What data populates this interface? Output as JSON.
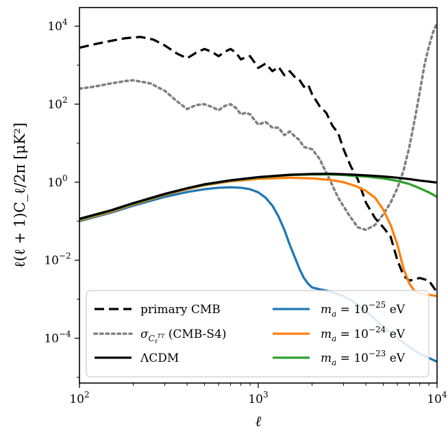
{
  "chart_data": {
    "type": "line",
    "xlabel": "ℓ",
    "ylabel": "ℓ(ℓ + 1)C_ℓ/2π [μK²]",
    "xscale": "log",
    "yscale": "log",
    "xlim": [
      100,
      10000
    ],
    "ylim": [
      7.1e-06,
      30000
    ],
    "grid": false,
    "legend_placement": "lower-left",
    "x_ticks": [
      {
        "value": 100,
        "base": "10",
        "exp": "2"
      },
      {
        "value": 1000,
        "base": "10",
        "exp": "3"
      },
      {
        "value": 10000,
        "base": "10",
        "exp": "4"
      }
    ],
    "y_ticks": [
      {
        "value": 0.0001,
        "base": "10",
        "exp": "−4"
      },
      {
        "value": 0.01,
        "base": "10",
        "exp": "−2"
      },
      {
        "value": 1,
        "base": "10",
        "exp": "0"
      },
      {
        "value": 100,
        "base": "10",
        "exp": "2"
      },
      {
        "value": 10000,
        "base": "10",
        "exp": "4"
      }
    ],
    "series": [
      {
        "name": "primary CMB",
        "color": "#000000",
        "style": "dashed",
        "x": [
          100,
          120,
          150,
          180,
          220,
          260,
          300,
          350,
          400,
          450,
          500,
          550,
          600,
          650,
          700,
          750,
          800,
          850,
          900,
          950,
          1000,
          1100,
          1200,
          1300,
          1400,
          1500,
          1600,
          1700,
          1800,
          1900,
          2000,
          2200,
          2400,
          2600,
          2800,
          3000,
          3300,
          3600,
          4000,
          4500,
          5000,
          5500,
          6000,
          6500,
          7000,
          8000,
          9000,
          10000
        ],
        "y": [
          2800,
          3400,
          4200,
          4900,
          5300,
          4500,
          3200,
          2000,
          1500,
          2100,
          2600,
          2200,
          1700,
          2200,
          2600,
          2100,
          1400,
          1600,
          1700,
          1200,
          850,
          1100,
          700,
          900,
          550,
          700,
          500,
          420,
          280,
          320,
          180,
          90,
          60,
          28,
          18,
          7,
          2.5,
          1.2,
          0.3,
          0.12,
          0.07,
          0.04,
          0.01,
          0.004,
          0.003,
          0.0035,
          0.003,
          0.0015
        ]
      },
      {
        "name": "σ_{C_ℓ^{TT}} (CMB-S4)",
        "color": "#808080",
        "style": "dotted",
        "x": [
          100,
          120,
          150,
          180,
          200,
          250,
          300,
          350,
          400,
          450,
          500,
          550,
          600,
          650,
          700,
          750,
          800,
          850,
          900,
          950,
          1000,
          1100,
          1200,
          1300,
          1400,
          1500,
          1600,
          1700,
          1800,
          2000,
          2200,
          2500,
          2800,
          3200,
          3600,
          4000,
          4500,
          5000,
          5500,
          6000,
          6500,
          7000,
          7500,
          8000,
          8500,
          9000,
          9500,
          10000
        ],
        "y": [
          250,
          280,
          340,
          390,
          410,
          340,
          220,
          120,
          75,
          95,
          100,
          85,
          70,
          90,
          100,
          80,
          55,
          60,
          55,
          40,
          30,
          35,
          25,
          25,
          16,
          20,
          15,
          12,
          8,
          7,
          4,
          1.2,
          0.4,
          0.15,
          0.07,
          0.06,
          0.08,
          0.15,
          0.3,
          0.7,
          2,
          8,
          40,
          200,
          1000,
          3000,
          7000,
          12000
        ]
      },
      {
        "name": "ΛCDM",
        "color": "#000000",
        "style": "solid",
        "x": [
          100,
          150,
          200,
          300,
          400,
          500,
          700,
          1000,
          1500,
          2000,
          2500,
          3000,
          4000,
          5000,
          6000,
          7000,
          8000,
          10000
        ],
        "y": [
          0.115,
          0.19,
          0.29,
          0.5,
          0.7,
          0.88,
          1.12,
          1.35,
          1.55,
          1.62,
          1.64,
          1.6,
          1.5,
          1.4,
          1.3,
          1.2,
          1.1,
          0.98
        ]
      },
      {
        "name": "m_a = 10^{−25} eV",
        "color": "#1f77b4",
        "style": "solid",
        "x": [
          100,
          150,
          200,
          300,
          400,
          500,
          600,
          700,
          800,
          900,
          1000,
          1100,
          1200,
          1300,
          1400,
          1500,
          1600,
          1700,
          1800,
          1900,
          2000,
          2200,
          2500,
          3000,
          3500,
          4000,
          5000,
          6000,
          7000,
          8000,
          10000
        ],
        "y": [
          0.1,
          0.165,
          0.25,
          0.42,
          0.56,
          0.66,
          0.72,
          0.74,
          0.72,
          0.66,
          0.55,
          0.4,
          0.25,
          0.13,
          0.06,
          0.025,
          0.012,
          0.006,
          0.0035,
          0.0025,
          0.002,
          0.0018,
          0.0016,
          0.0012,
          0.0008,
          0.0005,
          0.0002,
          0.0001,
          6e-05,
          4e-05,
          2.5e-05
        ]
      },
      {
        "name": "m_a = 10^{−24} eV",
        "color": "#ff7f0e",
        "style": "solid",
        "x": [
          100,
          150,
          200,
          300,
          400,
          500,
          700,
          1000,
          1500,
          2000,
          2500,
          3000,
          3500,
          4000,
          4500,
          5000,
          5500,
          6000,
          6500,
          7000,
          7500,
          8000,
          9000,
          10000
        ],
        "y": [
          0.105,
          0.175,
          0.27,
          0.47,
          0.66,
          0.83,
          1.05,
          1.22,
          1.3,
          1.25,
          1.15,
          1.0,
          0.8,
          0.6,
          0.4,
          0.2,
          0.08,
          0.025,
          0.006,
          0.0025,
          0.0016,
          0.0014,
          0.0013,
          0.0012
        ]
      },
      {
        "name": "m_a = 10^{−23} eV",
        "color": "#2ca02c",
        "style": "solid",
        "x": [
          100,
          150,
          200,
          300,
          400,
          500,
          700,
          1000,
          1500,
          2000,
          2500,
          3000,
          4000,
          5000,
          6000,
          7000,
          8000,
          9000,
          10000
        ],
        "y": [
          0.11,
          0.185,
          0.28,
          0.49,
          0.69,
          0.86,
          1.1,
          1.32,
          1.52,
          1.58,
          1.58,
          1.52,
          1.4,
          1.25,
          1.08,
          0.9,
          0.7,
          0.55,
          0.42
        ]
      }
    ],
    "legend": [
      {
        "series": 0,
        "label": "primary CMB"
      },
      {
        "series": 1,
        "label_pre": "σ",
        "label_sub": "C",
        "label_subsub": "ℓ",
        "label_supsub": "TT",
        "label_post": " (CMB-S4)"
      },
      {
        "series": 2,
        "label": "ΛCDM"
      },
      {
        "series": 3,
        "label_pre": "m",
        "label_sub": "a",
        "label_mid": " = 10",
        "label_sup": "−25",
        "label_post": " eV"
      },
      {
        "series": 4,
        "label_pre": "m",
        "label_sub": "a",
        "label_mid": " = 10",
        "label_sup": "−24",
        "label_post": " eV"
      },
      {
        "series": 5,
        "label_pre": "m",
        "label_sub": "a",
        "label_mid": " = 10",
        "label_sup": "−23",
        "label_post": " eV"
      }
    ]
  }
}
